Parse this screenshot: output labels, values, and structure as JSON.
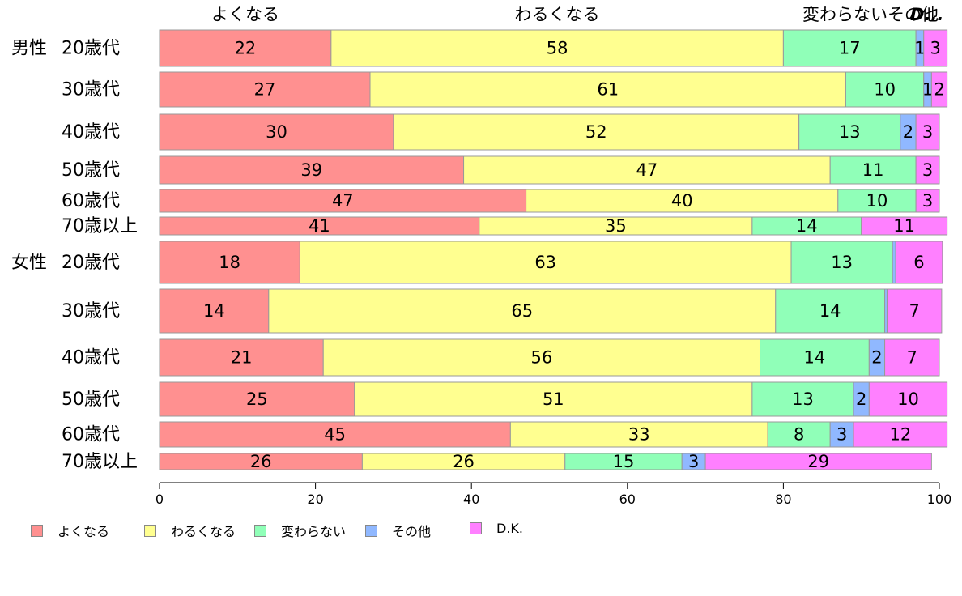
{
  "chart_data": {
    "type": "bar",
    "orientation": "horizontal",
    "stacked": true,
    "column_headers": [
      "よくなる",
      "わるくなる",
      "変わらないその他",
      "D..."
    ],
    "categories": [
      {
        "group": "男性",
        "label": "20歳代"
      },
      {
        "group": "",
        "label": "30歳代"
      },
      {
        "group": "",
        "label": "40歳代"
      },
      {
        "group": "",
        "label": "50歳代"
      },
      {
        "group": "",
        "label": "60歳代"
      },
      {
        "group": "",
        "label": "70歳以上"
      },
      {
        "group": "女性",
        "label": "20歳代"
      },
      {
        "group": "",
        "label": "30歳代"
      },
      {
        "group": "",
        "label": "40歳代"
      },
      {
        "group": "",
        "label": "50歳代"
      },
      {
        "group": "",
        "label": "60歳代"
      },
      {
        "group": "",
        "label": "70歳以上"
      }
    ],
    "series": [
      {
        "name": "よくなる",
        "color": "#ff9090",
        "values": [
          22,
          27,
          30,
          39,
          47,
          41,
          18,
          14,
          21,
          25,
          45,
          26
        ]
      },
      {
        "name": "わるくなる",
        "color": "#ffff90",
        "values": [
          58,
          61,
          52,
          47,
          40,
          35,
          63,
          65,
          56,
          51,
          33,
          26
        ]
      },
      {
        "name": "変わらない",
        "color": "#90ffb8",
        "values": [
          17,
          10,
          13,
          11,
          10,
          14,
          13,
          14,
          14,
          13,
          8,
          15
        ]
      },
      {
        "name": "その他",
        "color": "#90b8ff",
        "values": [
          1,
          1,
          2,
          0,
          0,
          0,
          0.4,
          0.3,
          2,
          2,
          3,
          3
        ]
      },
      {
        "name": "D.K.",
        "color": "#ff80ff",
        "values": [
          3,
          2,
          3,
          3,
          3,
          11,
          6,
          7,
          7,
          10,
          12,
          29
        ]
      }
    ],
    "data_labels": [
      [
        "22",
        "58",
        "17",
        "1",
        "3"
      ],
      [
        "27",
        "61",
        "10",
        "1",
        "2"
      ],
      [
        "30",
        "52",
        "13",
        "2",
        "3"
      ],
      [
        "39",
        "47",
        "11",
        "",
        "3"
      ],
      [
        "47",
        "40",
        "10",
        "",
        "3"
      ],
      [
        "41",
        "35",
        "14",
        "",
        "11"
      ],
      [
        "18",
        "63",
        "13",
        "",
        "6"
      ],
      [
        "14",
        "65",
        "14",
        "",
        "7"
      ],
      [
        "21",
        "56",
        "14",
        "2",
        "7"
      ],
      [
        "25",
        "51",
        "13",
        "2",
        "10"
      ],
      [
        "45",
        "33",
        "8",
        "3",
        "12"
      ],
      [
        "26",
        "26",
        "15",
        "3",
        "29"
      ]
    ],
    "xlim": [
      0,
      100
    ],
    "xticks": [
      0,
      20,
      40,
      60,
      80,
      100
    ],
    "grid": false,
    "legend_position": "bottom"
  }
}
